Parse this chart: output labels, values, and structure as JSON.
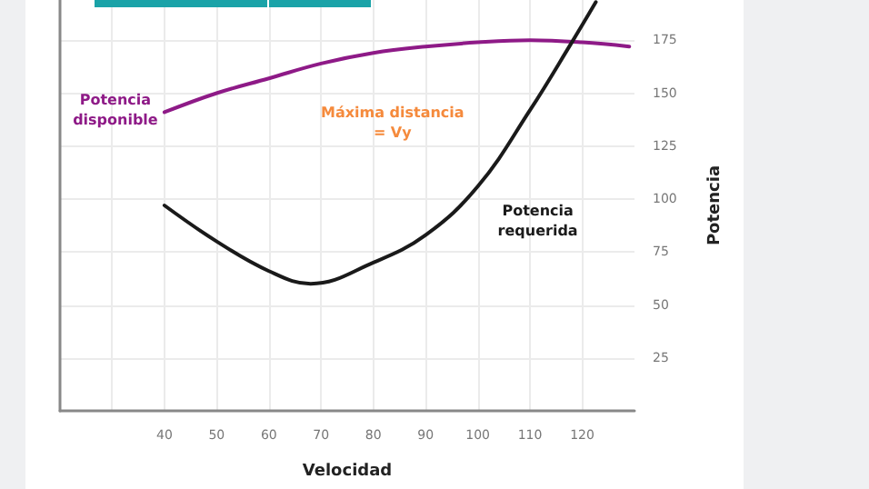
{
  "chart_data": {
    "type": "line",
    "xlabel": "Velocidad",
    "ylabel": "Potencia",
    "xlim": [
      20,
      130
    ],
    "xticks": [
      {
        "value": 30,
        "label": null
      },
      40,
      50,
      60,
      70,
      80,
      90,
      100,
      110,
      120
    ],
    "ylim": [
      0,
      194
    ],
    "yticks": [
      25,
      50,
      75,
      100,
      125,
      150,
      175
    ],
    "grid": true,
    "legend": false,
    "marker": "none",
    "line_style": "solid",
    "series": [
      {
        "name": "Potencia disponible",
        "color": "#8e1a87",
        "x": [
          40,
          50,
          60,
          70,
          80,
          90,
          100,
          110,
          120,
          129
        ],
        "values": [
          141,
          150,
          157,
          164,
          169,
          172,
          174,
          175,
          174,
          172
        ]
      },
      {
        "name": "Potencia requerida",
        "color": "#1a1a1a",
        "x": [
          40,
          50,
          60,
          68,
          80,
          90,
          100,
          110,
          118,
          122.6
        ],
        "values": [
          97,
          80,
          66,
          60,
          70,
          83,
          106,
          142,
          174,
          193
        ]
      }
    ],
    "annotations": [
      "Máxima distancia = Vy"
    ]
  }
}
